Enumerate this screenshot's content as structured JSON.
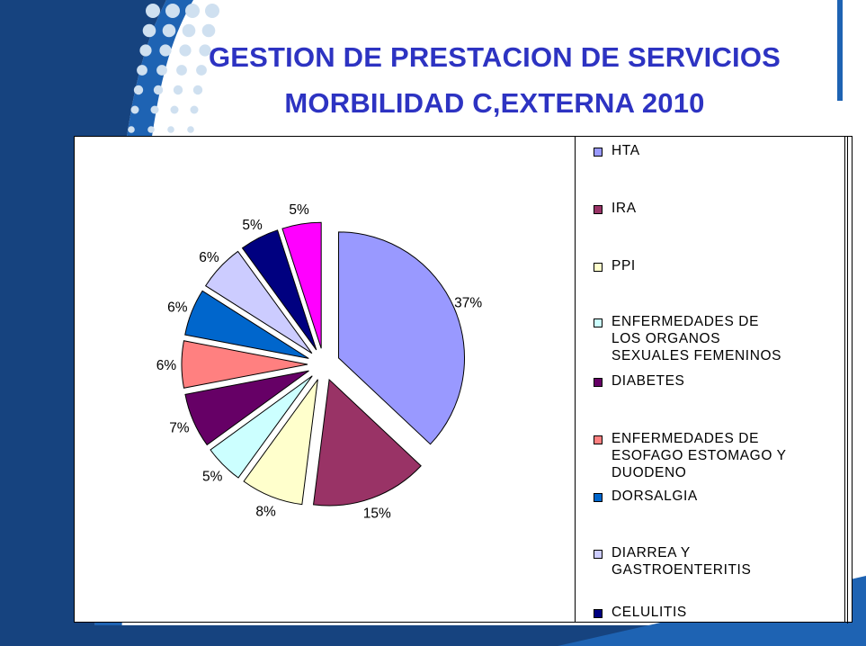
{
  "slide": {
    "title_line1": "GESTION DE PRESTACION DE SERVICIOS",
    "title_line2": "MORBILIDAD C,EXTERNA 2010",
    "colors": {
      "title": "#2d33c2",
      "band_dark": "#16437f",
      "band_mid": "#1e63b3",
      "dots": "#cfe0f0"
    }
  },
  "chart_data": {
    "type": "pie",
    "title": "",
    "exploded": true,
    "start": "12 o'clock, clockwise",
    "legend_position": "right",
    "slices": [
      {
        "label": "HTA",
        "value": 37,
        "pct_label": "37%",
        "color": "#9999ff"
      },
      {
        "label": "IRA",
        "value": 15,
        "pct_label": "15%",
        "color": "#993366"
      },
      {
        "label": "PPI",
        "value": 8,
        "pct_label": "8%",
        "color": "#ffffcc"
      },
      {
        "label": "ENFERMEDADES DE LOS ORGANOS SEXUALES FEMENINOS",
        "value": 5,
        "pct_label": "5%",
        "color": "#ccffff"
      },
      {
        "label": "DIABETES",
        "value": 7,
        "pct_label": "7%",
        "color": "#660066"
      },
      {
        "label": "ENFERMEDADES DE ESOFAGO ESTOMAGO Y DUODENO",
        "value": 6,
        "pct_label": "6%",
        "color": "#ff8080"
      },
      {
        "label": "DORSALGIA",
        "value": 6,
        "pct_label": "6%",
        "color": "#0066cc"
      },
      {
        "label": "DIARREA Y GASTROENTERITIS",
        "value": 6,
        "pct_label": "6%",
        "color": "#ccccff"
      },
      {
        "label": "CELULITIS",
        "value": 5,
        "pct_label": "5%",
        "color": "#000080"
      },
      {
        "label": "",
        "value": 5,
        "pct_label": "5%",
        "color": "#ff00ff"
      }
    ],
    "legend_lines": [
      [
        "HTA"
      ],
      [
        "IRA"
      ],
      [
        "PPI"
      ],
      [
        "ENFERMEDADES DE",
        "LOS ORGANOS",
        "SEXUALES FEMENINOS"
      ],
      [
        "DIABETES"
      ],
      [
        "ENFERMEDADES DE",
        "ESOFAGO ESTOMAGO Y",
        "DUODENO"
      ],
      [
        "DORSALGIA"
      ],
      [
        "DIARREA Y",
        "GASTROENTERITIS"
      ],
      [
        "CELULITIS"
      ]
    ]
  }
}
